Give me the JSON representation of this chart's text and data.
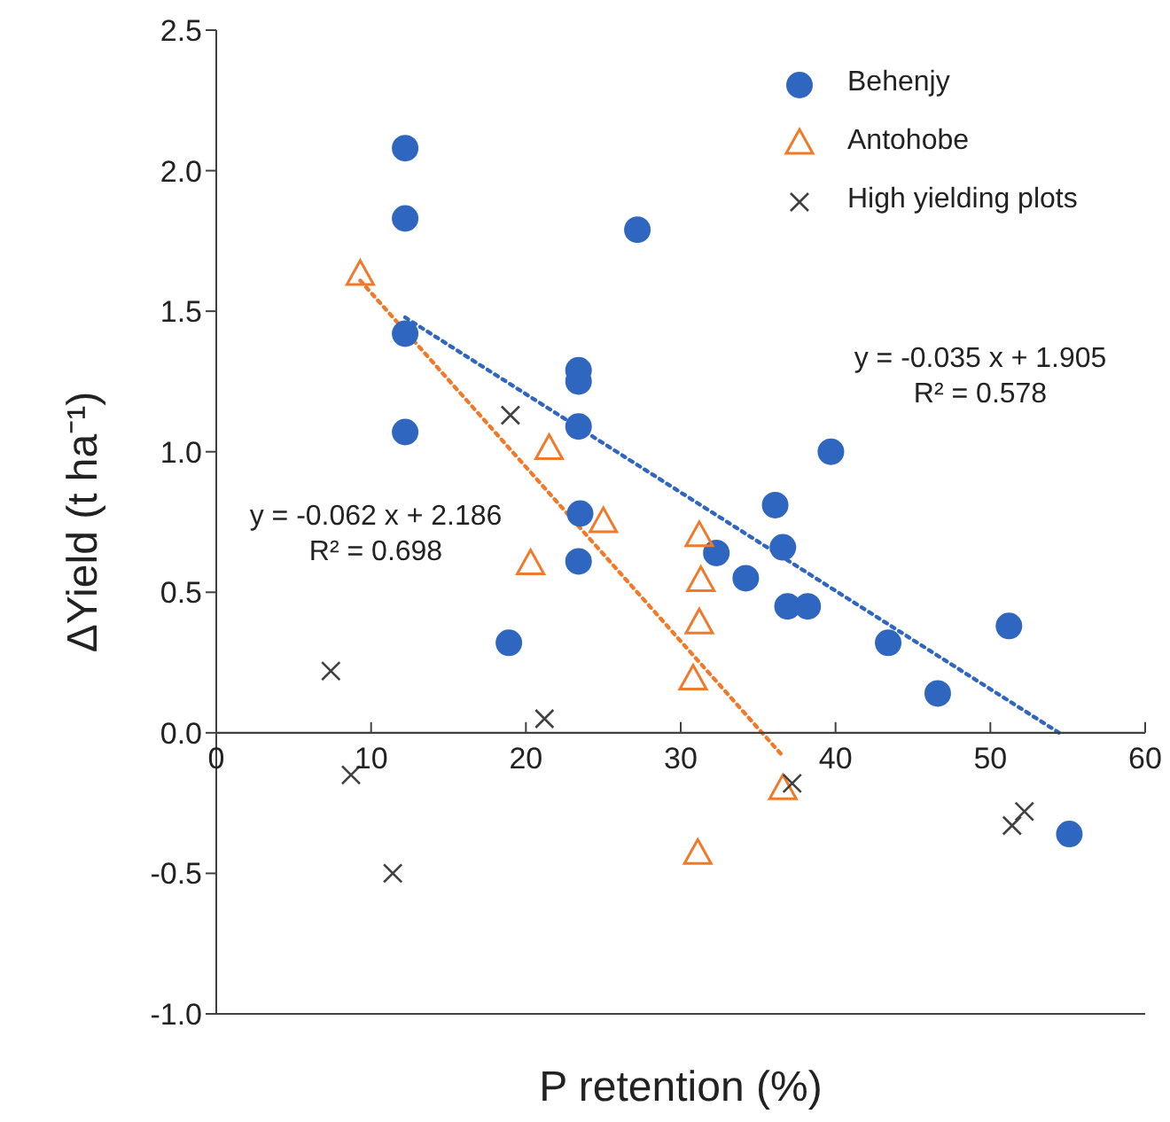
{
  "chart_data": {
    "type": "scatter",
    "xlabel": "P retention (%)",
    "ylabel": "ΔYield (t ha⁻¹)",
    "xlim": [
      0,
      60
    ],
    "xticks": [
      0,
      10,
      20,
      30,
      40,
      50,
      60
    ],
    "ylim": [
      -1,
      2.5
    ],
    "yticks": [
      {
        "value": -1,
        "label": "-1.0"
      },
      {
        "value": -0.5,
        "label": "-0.5"
      },
      {
        "value": 0,
        "label": "0.0"
      },
      {
        "value": 0.5,
        "label": "0.5"
      },
      {
        "value": 1,
        "label": "1.0"
      },
      {
        "value": 1.5,
        "label": "1.5"
      },
      {
        "value": 2,
        "label": "2.0"
      },
      {
        "value": 2.5,
        "label": "2.5"
      }
    ],
    "grid": false,
    "legend": "top right",
    "series": [
      {
        "name": "Behenjy",
        "marker": "circle",
        "color": "#2f66c0",
        "x": [
          12.2,
          12.2,
          12.2,
          12.2,
          27.2,
          23.4,
          23.4,
          23.4,
          23.5,
          23.4,
          18.9,
          39.7,
          36.1,
          36.6,
          32.3,
          34.2,
          36.9,
          38.2,
          43.4,
          51.2,
          46.6,
          55.1
        ],
        "values": [
          2.08,
          1.83,
          1.42,
          1.07,
          1.79,
          1.29,
          1.25,
          1.09,
          0.78,
          0.61,
          0.32,
          1.0,
          0.81,
          0.66,
          0.64,
          0.55,
          0.45,
          0.45,
          0.32,
          0.38,
          0.14,
          -0.36
        ]
      },
      {
        "name": "Antohobe",
        "marker": "triangle",
        "color": "#f07a2a",
        "x": [
          9.3,
          21.5,
          25.0,
          20.3,
          31.2,
          31.3,
          31.2,
          30.8,
          36.6,
          31.1
        ],
        "values": [
          1.63,
          1.01,
          0.75,
          0.6,
          0.7,
          0.54,
          0.39,
          0.19,
          -0.2,
          -0.43
        ]
      },
      {
        "name": "High yielding plots",
        "marker": "cross",
        "color": "#404040",
        "x": [
          19.0,
          7.4,
          21.2,
          8.7,
          11.4,
          37.2,
          51.4,
          52.2
        ],
        "values": [
          1.13,
          0.22,
          0.05,
          -0.15,
          -0.5,
          -0.18,
          -0.33,
          -0.28
        ]
      },
      {
        "type": "line",
        "line_style": "dotted",
        "marker": "none",
        "color": "#2f66c0",
        "x": [
          12.2,
          54.7
        ],
        "values": [
          1.478,
          -0.009
        ]
      },
      {
        "type": "line",
        "line_style": "dotted",
        "marker": "none",
        "color": "#f07a2a",
        "x": [
          9.3,
          36.5
        ],
        "values": [
          1.609,
          -0.077
        ]
      }
    ],
    "annotations": [
      "y = -0.035 x + 1.905",
      "R² = 0.578",
      "y = -0.062 x + 2.186",
      "R² = 0.698"
    ]
  }
}
